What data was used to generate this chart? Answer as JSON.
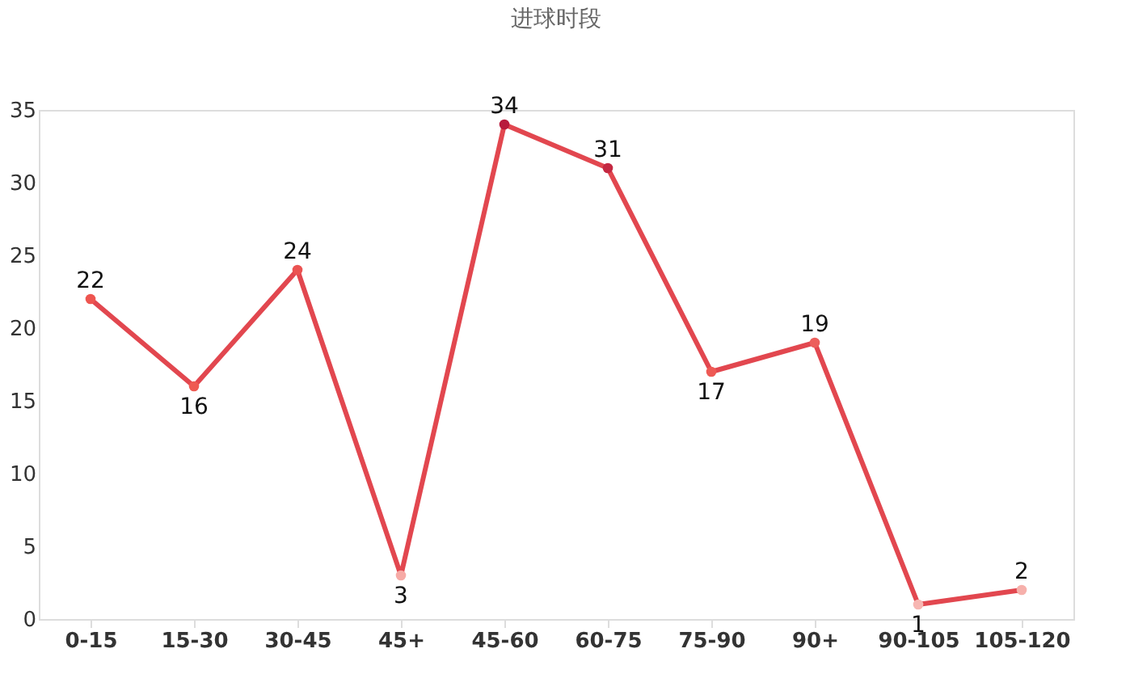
{
  "chart_data": {
    "type": "line",
    "title": "进球时段",
    "categories": [
      "0-15",
      "15-30",
      "30-45",
      "45+",
      "45-60",
      "60-75",
      "75-90",
      "90+",
      "90-105",
      "105-120"
    ],
    "series": [
      {
        "color": "#e2474f",
        "values": [
          22,
          16,
          24,
          3,
          34,
          31,
          17,
          19,
          1,
          2
        ],
        "colors": [
          "#ee5550",
          "#ef5a52",
          "#eb5352",
          "#f6aaa6",
          "#b81a3c",
          "#c42841",
          "#ee5a55",
          "#ec5f5c",
          "#f7b6b2",
          "#f6b0ab"
        ]
      }
    ],
    "ylim": [
      0,
      35
    ],
    "yticks": [
      0,
      5,
      10,
      15,
      20,
      25,
      30,
      35
    ],
    "grid": false,
    "marker": "circle",
    "line_style": "solid",
    "data_labels": true
  }
}
